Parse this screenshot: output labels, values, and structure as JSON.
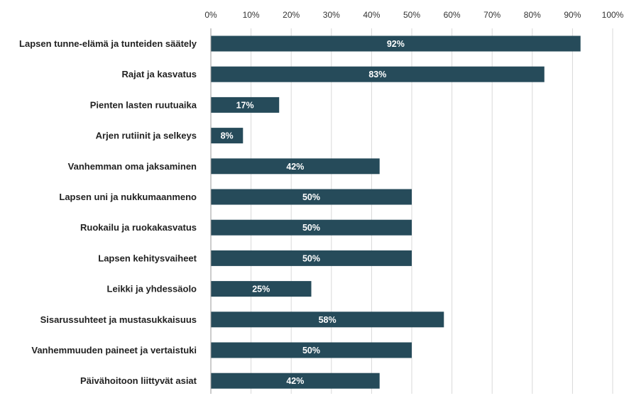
{
  "chart_data": {
    "type": "bar",
    "orientation": "horizontal",
    "title": "",
    "xlabel": "",
    "ylabel": "",
    "xlim": [
      0,
      100
    ],
    "grid": true,
    "x_ticks": [
      "0%",
      "10%",
      "20%",
      "30%",
      "40%",
      "50%",
      "60%",
      "70%",
      "80%",
      "90%",
      "100%"
    ],
    "categories": [
      "Lapsen tunne-elämä ja tunteiden säätely",
      "Rajat ja kasvatus",
      "Pienten lasten ruutuaika",
      "Arjen rutiinit ja selkeys",
      "Vanhemman oma jaksaminen",
      "Lapsen uni ja nukkumaanmeno",
      "Ruokailu ja ruokakasvatus",
      "Lapsen kehitysvaiheet",
      "Leikki ja yhdessäolo",
      "Sisarussuhteet ja mustasukkaisuus",
      "Vanhemmuuden paineet ja vertaistuki",
      "Päivähoitoon liittyvät asiat"
    ],
    "values": [
      92,
      83,
      17,
      8,
      42,
      50,
      50,
      50,
      25,
      58,
      50,
      42
    ],
    "value_labels": [
      "92%",
      "83%",
      "17%",
      "8%",
      "42%",
      "50%",
      "50%",
      "50%",
      "25%",
      "58%",
      "50%",
      "42%"
    ],
    "colors": {
      "bar": "#264b5a"
    }
  }
}
